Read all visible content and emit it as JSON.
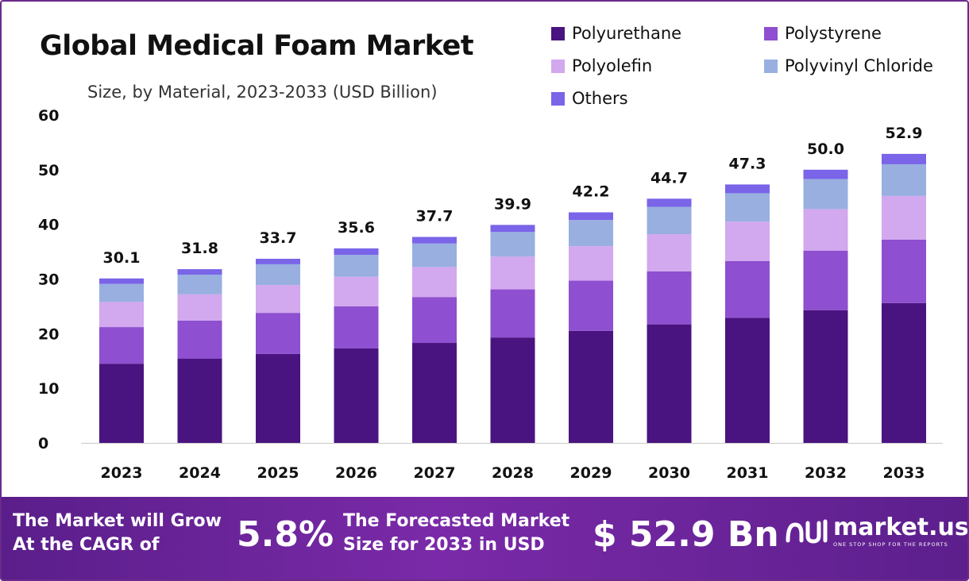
{
  "header": {
    "title": "Global Medical Foam Market",
    "subtitle": "Size, by Material, 2023-2033 (USD Billion)"
  },
  "chart_data": {
    "type": "bar",
    "stacked": true,
    "categories": [
      "2023",
      "2024",
      "2025",
      "2026",
      "2027",
      "2028",
      "2029",
      "2030",
      "2031",
      "2032",
      "2033"
    ],
    "series": [
      {
        "name": "Polyurethane",
        "color": "#4a1480",
        "values": [
          14.5,
          15.4,
          16.3,
          17.3,
          18.3,
          19.3,
          20.5,
          21.7,
          22.9,
          24.3,
          25.6
        ]
      },
      {
        "name": "Polystyrene",
        "color": "#8e4fd0",
        "values": [
          6.7,
          7.0,
          7.5,
          7.7,
          8.4,
          8.8,
          9.2,
          9.7,
          10.4,
          10.9,
          11.6
        ]
      },
      {
        "name": "Polyolefin",
        "color": "#d2a8ee",
        "values": [
          4.6,
          4.8,
          5.1,
          5.4,
          5.5,
          6.0,
          6.3,
          6.8,
          7.2,
          7.6,
          8.0
        ]
      },
      {
        "name": "Polyvinyl Chloride",
        "color": "#98afe0",
        "values": [
          3.3,
          3.6,
          3.8,
          4.0,
          4.3,
          4.5,
          4.8,
          5.0,
          5.2,
          5.5,
          5.8
        ]
      },
      {
        "name": "Others",
        "color": "#7a64e8",
        "values": [
          1.0,
          1.0,
          1.0,
          1.2,
          1.2,
          1.3,
          1.4,
          1.5,
          1.6,
          1.7,
          1.9
        ]
      }
    ],
    "totals": [
      "30.1",
      "31.8",
      "33.7",
      "35.6",
      "37.7",
      "39.9",
      "42.2",
      "44.7",
      "47.3",
      "50.0",
      "52.9"
    ],
    "ylim": [
      0,
      60
    ],
    "yticks": [
      "0",
      "10",
      "20",
      "30",
      "40",
      "50",
      "60"
    ],
    "grid": false,
    "legend_position": "top-right"
  },
  "banner": {
    "cagr_text_line1": "The Market will Grow",
    "cagr_text_line2": "At the CAGR of",
    "cagr_value": "5.8%",
    "forecast_text_line1": "The Forecasted Market",
    "forecast_text_line2": "Size for 2033 in USD",
    "forecast_value": "$ 52.9 Bn",
    "logo_name": "market.us",
    "logo_tagline": "ONE STOP SHOP FOR THE REPORTS"
  }
}
